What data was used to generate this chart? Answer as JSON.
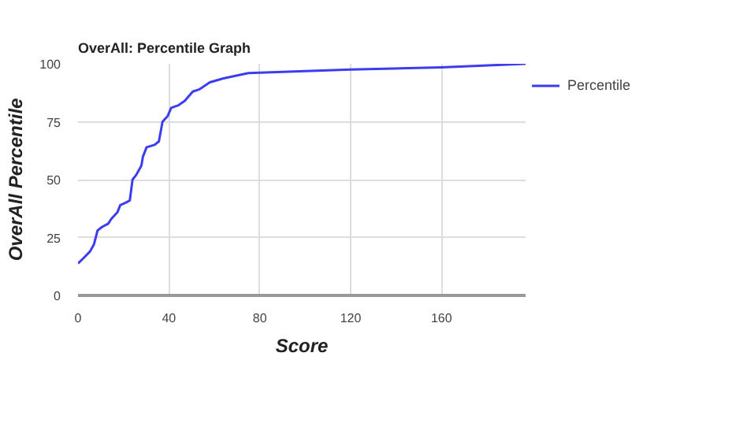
{
  "chart_data": {
    "type": "line",
    "title": "OverAll: Percentile Graph",
    "xlabel": "Score",
    "ylabel": "OverAll Percentile",
    "xlim": [
      0,
      197
    ],
    "ylim": [
      0,
      100
    ],
    "xticks": [
      0,
      40,
      80,
      120,
      160
    ],
    "yticks": [
      0,
      25,
      50,
      75,
      100
    ],
    "grid": true,
    "legend": "right",
    "series": [
      {
        "name": "Percentile",
        "color": "#3c3cf0",
        "x": [
          0,
          2.3,
          5.3,
          7,
          8.6,
          10.5,
          13.3,
          14.6,
          17.4,
          18.6,
          20.9,
          22.8,
          24,
          25.6,
          27.9,
          28.6,
          30.2,
          33.7,
          35.6,
          37.2,
          39.5,
          41,
          44,
          47,
          50.5,
          53.5,
          58,
          64,
          75,
          120,
          160,
          197
        ],
        "values": [
          13.8,
          16,
          19,
          22,
          28,
          29.5,
          31,
          33,
          36,
          39,
          40,
          41,
          50,
          52,
          56,
          60,
          64,
          65,
          66.5,
          75,
          77.5,
          81,
          82,
          84,
          88,
          89,
          92,
          93.7,
          96,
          97.5,
          98.5,
          100
        ]
      }
    ]
  }
}
